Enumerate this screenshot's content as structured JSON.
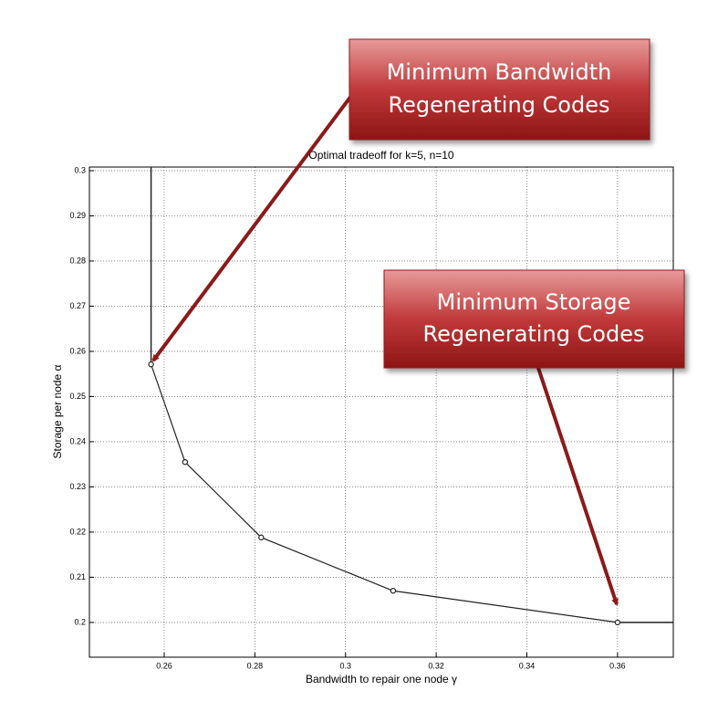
{
  "chart_data": {
    "type": "line",
    "title": "Optimal tradeoff for k=5, n=10",
    "xlabel": "Bandwidth to repair one node γ",
    "ylabel": "Storage per node α",
    "x": [
      0.2571,
      0.2646,
      0.2814,
      0.3105,
      0.36
    ],
    "series": [
      {
        "color": "#222222",
        "values": [
          0.2571,
          0.2355,
          0.2188,
          0.207,
          0.2
        ]
      }
    ],
    "xlim": [
      0.2435,
      0.3723
    ],
    "ylim": [
      0.1923,
      0.3008
    ],
    "xticks": [
      0.26,
      0.28,
      0.3,
      0.32,
      0.34,
      0.36
    ],
    "yticks": [
      0.2,
      0.21,
      0.22,
      0.23,
      0.24,
      0.25,
      0.26,
      0.27,
      0.28,
      0.29,
      0.3
    ],
    "grid": true,
    "annotations": [
      {
        "lines": [
          "Minimum Bandwidth",
          "Regenerating Codes"
        ]
      },
      {
        "lines": [
          "Minimum Storage",
          "Regenerating Codes"
        ]
      }
    ]
  }
}
